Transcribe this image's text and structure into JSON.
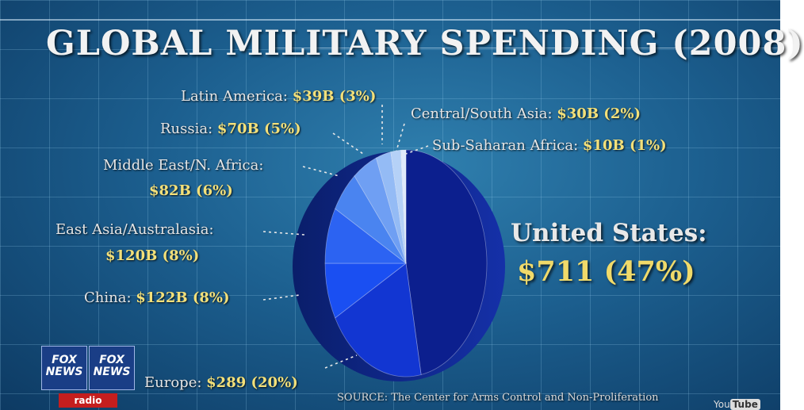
{
  "title": "GLOBAL MILITARY SPENDING (2008)",
  "chart_data": {
    "type": "pie",
    "title": "GLOBAL MILITARY SPENDING (2008)",
    "slices": [
      {
        "label": "United States:",
        "value_text": "$711 (47%)",
        "percent": 47,
        "color": "#0c1f8e"
      },
      {
        "label": "Europe:",
        "value_text": "$289 (20%)",
        "percent": 20,
        "color": "#1236d2"
      },
      {
        "label": "China:",
        "value_text": "$122B (8%)",
        "percent": 8,
        "color": "#1a4ff2"
      },
      {
        "label": "East Asia/Australasia:",
        "value_text": "$120B (8%)",
        "percent": 8,
        "color": "#2c63f2"
      },
      {
        "label": "Middle East/N. Africa:",
        "value_text": "$82B (6%)",
        "percent": 6,
        "color": "#4a84f0"
      },
      {
        "label": "Russia:",
        "value_text": "$70B (5%)",
        "percent": 5,
        "color": "#6f9ff3"
      },
      {
        "label": "Latin America:",
        "value_text": "$39B (3%)",
        "percent": 3,
        "color": "#94bbf5"
      },
      {
        "label": "Central/South Asia:",
        "value_text": "$30B (2%)",
        "percent": 2,
        "color": "#b5d1f7"
      },
      {
        "label": "Sub-Saharan Africa:",
        "value_text": "$10B (1%)",
        "percent": 1,
        "color": "#dfeafb"
      }
    ]
  },
  "source": "SOURCE: The Center for Arms Control and Non-Proliferation",
  "logo": {
    "fox1": "FOX NEWS",
    "fox2": "FOX NEWS",
    "radio": "radio"
  },
  "watermark": {
    "you": "You",
    "tube": "Tube"
  }
}
